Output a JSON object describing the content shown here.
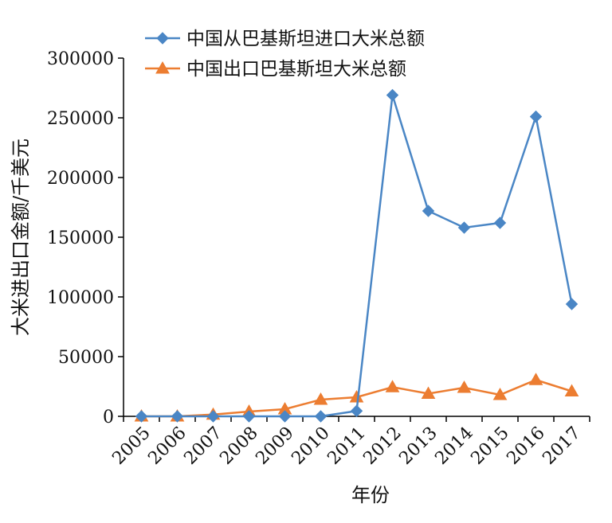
{
  "chart_data": {
    "type": "line",
    "title": "",
    "xlabel": "年份",
    "ylabel": "大米进出口金额/千美元",
    "categories": [
      "2005",
      "2006",
      "2007",
      "2008",
      "2009",
      "2010",
      "2011",
      "2012",
      "2013",
      "2014",
      "2015",
      "2016",
      "2017"
    ],
    "ylim": [
      0,
      300000
    ],
    "yticks": [
      0,
      50000,
      100000,
      150000,
      200000,
      250000,
      300000
    ],
    "ytick_labels": [
      "0",
      "50000",
      "100000",
      "150000",
      "200000",
      "250000",
      "300000"
    ],
    "grid": false,
    "legend_position": "top-right",
    "series": [
      {
        "name": "中国从巴基斯坦进口大米总额",
        "color": "#4a86c5",
        "marker": "diamond",
        "values": [
          0,
          0,
          0,
          0,
          0,
          0,
          4500,
          269000,
          172000,
          158000,
          162000,
          251000,
          94000
        ]
      },
      {
        "name": "中国出口巴基斯坦大米总额",
        "color": "#ec7d31",
        "marker": "triangle",
        "values": [
          0,
          0,
          1500,
          4000,
          6000,
          14000,
          16000,
          24500,
          19000,
          24000,
          18000,
          30500,
          21000
        ]
      }
    ]
  }
}
